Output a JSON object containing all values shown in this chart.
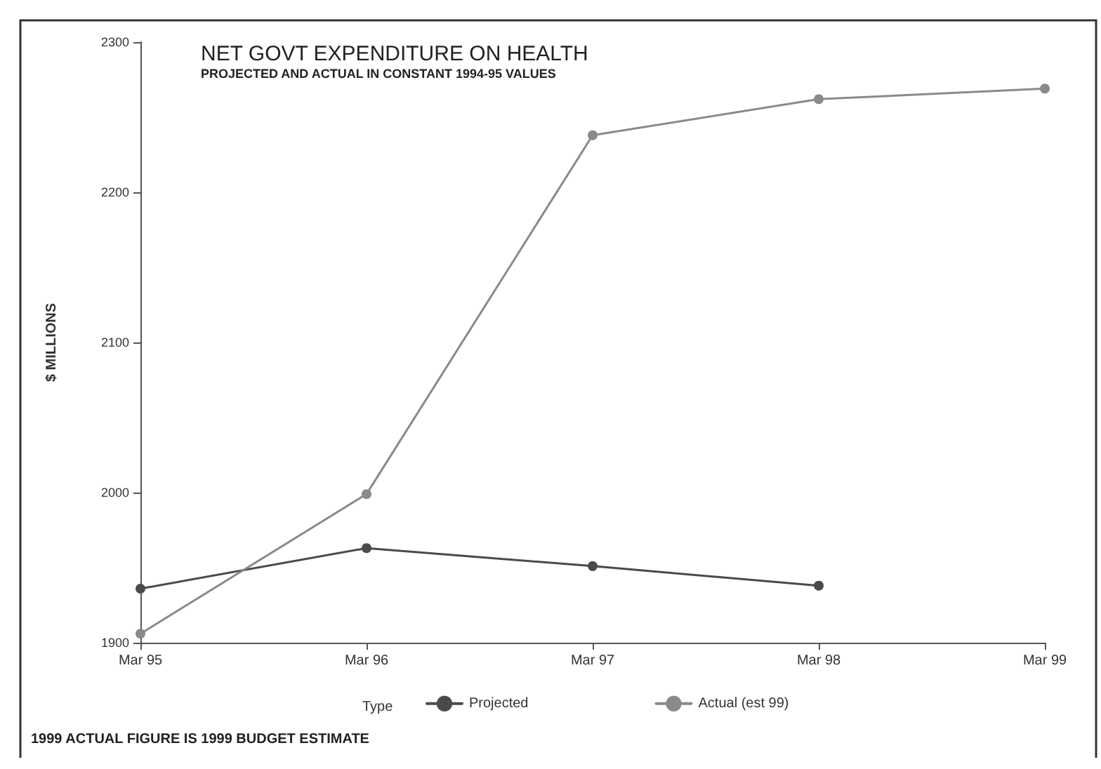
{
  "chart_data": {
    "type": "line",
    "title": "NET GOVT EXPENDITURE ON HEALTH",
    "subtitle": "PROJECTED AND ACTUAL IN CONSTANT 1994-95 VALUES",
    "ylabel": "$ MILLIONS",
    "legend_title": "Type",
    "categories": [
      "Mar 95",
      "Mar 96",
      "Mar 97",
      "Mar 98",
      "Mar 99"
    ],
    "series": [
      {
        "name": "Projected",
        "color": "#4a4a4a",
        "values": [
          1936,
          1963,
          1951,
          1938,
          null
        ]
      },
      {
        "name": "Actual (est 99)",
        "color": "#8a8a8a",
        "values": [
          1906,
          1999,
          2238,
          2262,
          2269
        ]
      }
    ],
    "ylim": [
      1900,
      2300
    ],
    "yticks": [
      1900,
      2000,
      2100,
      2200,
      2300
    ],
    "grid": false,
    "legend": "bottom",
    "marker": "circle",
    "line_style": "solid",
    "annotations": [
      "1999 ACTUAL FIGURE IS 1999 BUDGET ESTIMATE"
    ]
  }
}
